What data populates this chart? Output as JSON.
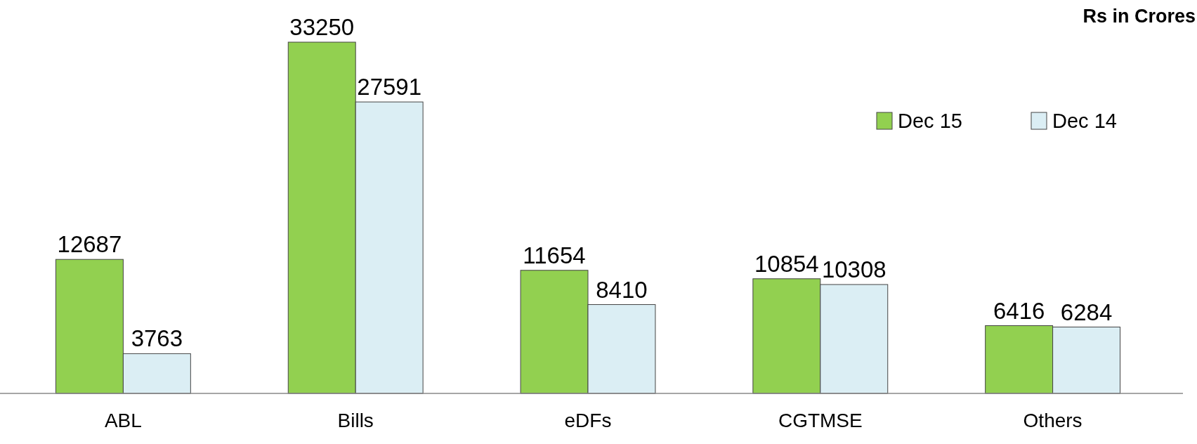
{
  "chart_data": {
    "type": "bar",
    "ylabel": "Rs in Crores",
    "categories": [
      "ABL",
      "Bills",
      "eDFs",
      "CGTMSE",
      "Others"
    ],
    "series": [
      {
        "name": "Dec 15",
        "color": "#92d050",
        "values": [
          12687,
          33250,
          11654,
          10854,
          6416
        ]
      },
      {
        "name": "Dec 14",
        "color": "#dbeef4",
        "values": [
          3763,
          27591,
          8410,
          10308,
          6284
        ]
      }
    ],
    "data_labels": true,
    "legend": "top right",
    "grid": false
  }
}
